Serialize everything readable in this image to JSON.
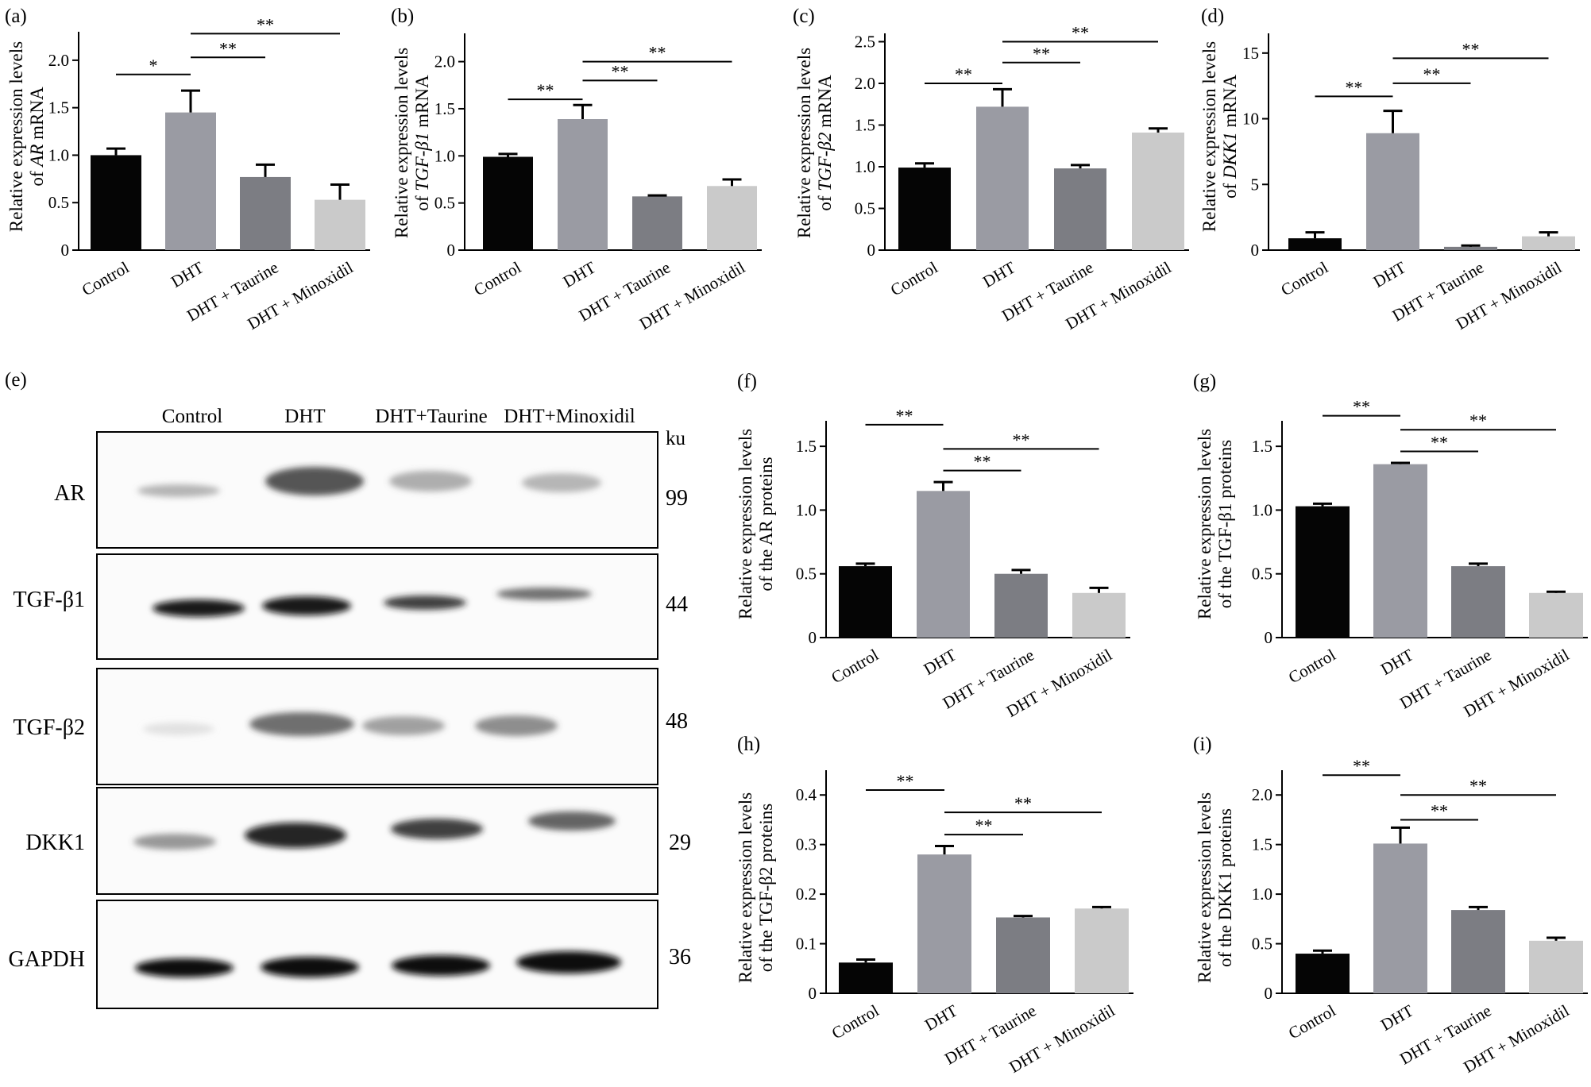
{
  "colors": {
    "control": "#050505",
    "dht": "#9a9ba3",
    "taurine": "#7c7d83",
    "minoxidil": "#cacaca"
  },
  "chart_data": [
    {
      "panel": "(a)",
      "type": "bar",
      "ylabel_main": "Relative expression levels",
      "ylabel_prefix": "of ",
      "ylabel_gene": "AR",
      "ylabel_suffix": " mRNA",
      "categories": [
        "Control",
        "DHT",
        "DHT + Taurine",
        "DHT + Minoxidil"
      ],
      "values": [
        1.0,
        1.45,
        0.77,
        0.53
      ],
      "errors": [
        0.07,
        0.23,
        0.13,
        0.16
      ],
      "ylim": [
        0,
        2.3
      ],
      "yticks": [
        0,
        0.5,
        1.0,
        1.5,
        2.0
      ],
      "ytick_labels": [
        "0",
        "0.5",
        "1.0",
        "1.5",
        "2.0"
      ],
      "significance": [
        {
          "from": 0,
          "to": 1,
          "y": 1.85,
          "label": "*"
        },
        {
          "from": 1,
          "to": 2,
          "y": 2.03,
          "label": "**"
        },
        {
          "from": 1,
          "to": 3,
          "y": 2.28,
          "label": "**"
        }
      ]
    },
    {
      "panel": "(b)",
      "type": "bar",
      "ylabel_main": "Relative expression levels",
      "ylabel_prefix": "of ",
      "ylabel_gene": "TGF-β1",
      "ylabel_suffix": " mRNA",
      "categories": [
        "Control",
        "DHT",
        "DHT + Taurine",
        "DHT + Minoxidil"
      ],
      "values": [
        0.99,
        1.39,
        0.57,
        0.68
      ],
      "errors": [
        0.03,
        0.15,
        0.01,
        0.07
      ],
      "ylim": [
        0,
        2.3
      ],
      "yticks": [
        0,
        0.5,
        1.0,
        1.5,
        2.0
      ],
      "ytick_labels": [
        "0",
        "0.5",
        "1.0",
        "1.5",
        "2.0"
      ],
      "significance": [
        {
          "from": 0,
          "to": 1,
          "y": 1.6,
          "label": "**"
        },
        {
          "from": 1,
          "to": 2,
          "y": 1.8,
          "label": "**"
        },
        {
          "from": 1,
          "to": 3,
          "y": 2.0,
          "label": "**"
        }
      ]
    },
    {
      "panel": "(c)",
      "type": "bar",
      "ylabel_main": "Relative expression levels",
      "ylabel_prefix": "of ",
      "ylabel_gene": "TGF-β2",
      "ylabel_suffix": " mRNA",
      "categories": [
        "Control",
        "DHT",
        "DHT + Taurine",
        "DHT + Minoxidil"
      ],
      "values": [
        0.99,
        1.72,
        0.98,
        1.41
      ],
      "errors": [
        0.05,
        0.21,
        0.04,
        0.05
      ],
      "ylim": [
        0,
        2.6
      ],
      "yticks": [
        0,
        0.5,
        1.0,
        1.5,
        2.0,
        2.5
      ],
      "ytick_labels": [
        "0",
        "0.5",
        "1.0",
        "1.5",
        "2.0",
        "2.5"
      ],
      "significance": [
        {
          "from": 0,
          "to": 1,
          "y": 2.0,
          "label": "**"
        },
        {
          "from": 1,
          "to": 2,
          "y": 2.25,
          "label": "**"
        },
        {
          "from": 1,
          "to": 3,
          "y": 2.5,
          "label": "**"
        }
      ]
    },
    {
      "panel": "(d)",
      "type": "bar",
      "ylabel_main": "Relative expression levels",
      "ylabel_prefix": "of ",
      "ylabel_gene": "DKK1",
      "ylabel_suffix": " mRNA",
      "categories": [
        "Control",
        "DHT",
        "DHT + Taurine",
        "DHT + Minoxidil"
      ],
      "values": [
        0.9,
        8.9,
        0.25,
        1.05
      ],
      "errors": [
        0.45,
        1.7,
        0.1,
        0.3
      ],
      "ylim": [
        0,
        16.5
      ],
      "yticks": [
        0,
        5,
        10,
        15
      ],
      "ytick_labels": [
        "0",
        "5",
        "10",
        "15"
      ],
      "significance": [
        {
          "from": 0,
          "to": 1,
          "y": 11.7,
          "label": "**"
        },
        {
          "from": 1,
          "to": 2,
          "y": 12.7,
          "label": "**"
        },
        {
          "from": 1,
          "to": 3,
          "y": 14.6,
          "label": "**"
        }
      ]
    },
    {
      "panel": "(f)",
      "type": "bar",
      "ylabel_main": "Relative expression levels",
      "ylabel_prefix": "of the AR proteins",
      "ylabel_gene": "",
      "ylabel_suffix": "",
      "categories": [
        "Control",
        "DHT",
        "DHT + Taurine",
        "DHT + Minoxidil"
      ],
      "values": [
        0.56,
        1.15,
        0.5,
        0.35
      ],
      "errors": [
        0.02,
        0.07,
        0.03,
        0.04
      ],
      "ylim": [
        0,
        1.7
      ],
      "yticks": [
        0,
        0.5,
        1.0,
        1.5
      ],
      "ytick_labels": [
        "0",
        "0.5",
        "1.0",
        "1.5"
      ],
      "significance": [
        {
          "from": 0,
          "to": 1,
          "y": 1.67,
          "label": "**"
        },
        {
          "from": 1,
          "to": 2,
          "y": 1.31,
          "label": "**"
        },
        {
          "from": 1,
          "to": 3,
          "y": 1.48,
          "label": "**"
        }
      ]
    },
    {
      "panel": "(g)",
      "type": "bar",
      "ylabel_main": "Relative expression levels",
      "ylabel_prefix": "of the TGF-β1 proteins",
      "ylabel_gene": "",
      "ylabel_suffix": "",
      "categories": [
        "Control",
        "DHT",
        "DHT + Taurine",
        "DHT + Minoxidil"
      ],
      "values": [
        1.03,
        1.36,
        0.56,
        0.35
      ],
      "errors": [
        0.02,
        0.01,
        0.02,
        0.01
      ],
      "ylim": [
        0,
        1.7
      ],
      "yticks": [
        0,
        0.5,
        1.0,
        1.5
      ],
      "ytick_labels": [
        "0",
        "0.5",
        "1.0",
        "1.5"
      ],
      "significance": [
        {
          "from": 0,
          "to": 1,
          "y": 1.74,
          "label": "**"
        },
        {
          "from": 1,
          "to": 2,
          "y": 1.46,
          "label": "**"
        },
        {
          "from": 1,
          "to": 3,
          "y": 1.63,
          "label": "**"
        }
      ]
    },
    {
      "panel": "(h)",
      "type": "bar",
      "ylabel_main": "Relative expression levels",
      "ylabel_prefix": "of the TGF-β2 proteins",
      "ylabel_gene": "",
      "ylabel_suffix": "",
      "categories": [
        "Control",
        "DHT",
        "DHT + Taurine",
        "DHT + Minoxidil"
      ],
      "values": [
        0.062,
        0.28,
        0.153,
        0.171
      ],
      "errors": [
        0.006,
        0.017,
        0.003,
        0.003
      ],
      "ylim": [
        0,
        0.45
      ],
      "yticks": [
        0,
        0.1,
        0.2,
        0.3,
        0.4
      ],
      "ytick_labels": [
        "0",
        "0.1",
        "0.2",
        "0.3",
        "0.4"
      ],
      "significance": [
        {
          "from": 0,
          "to": 1,
          "y": 0.41,
          "label": "**"
        },
        {
          "from": 1,
          "to": 2,
          "y": 0.32,
          "label": "**"
        },
        {
          "from": 1,
          "to": 3,
          "y": 0.365,
          "label": "**"
        }
      ]
    },
    {
      "panel": "(i)",
      "type": "bar",
      "ylabel_main": "Relative expression levels",
      "ylabel_prefix": "of the DKK1 proteins",
      "ylabel_gene": "",
      "ylabel_suffix": "",
      "categories": [
        "Control",
        "DHT",
        "DHT + Taurine",
        "DHT + Minoxidil"
      ],
      "values": [
        0.4,
        1.51,
        0.84,
        0.53
      ],
      "errors": [
        0.03,
        0.16,
        0.03,
        0.03
      ],
      "ylim": [
        0,
        2.25
      ],
      "yticks": [
        0,
        0.5,
        1.0,
        1.5,
        2.0
      ],
      "ytick_labels": [
        "0",
        "0.5",
        "1.0",
        "1.5",
        "2.0"
      ],
      "significance": [
        {
          "from": 0,
          "to": 1,
          "y": 2.2,
          "label": "**"
        },
        {
          "from": 1,
          "to": 2,
          "y": 1.75,
          "label": "**"
        },
        {
          "from": 1,
          "to": 3,
          "y": 2.0,
          "label": "**"
        }
      ]
    }
  ],
  "blot": {
    "panel": "(e)",
    "lanes": [
      "Control",
      "DHT",
      "DHT+Taurine",
      "DHT+Minoxidil"
    ],
    "unit": "ku",
    "rows": [
      {
        "protein": "AR",
        "size": "99"
      },
      {
        "protein": "TGF-β1",
        "size": "44"
      },
      {
        "protein": "TGF-β2",
        "size": "48"
      },
      {
        "protein": "DKK1",
        "size": "29"
      },
      {
        "protein": "GAPDH",
        "size": "36"
      }
    ]
  }
}
